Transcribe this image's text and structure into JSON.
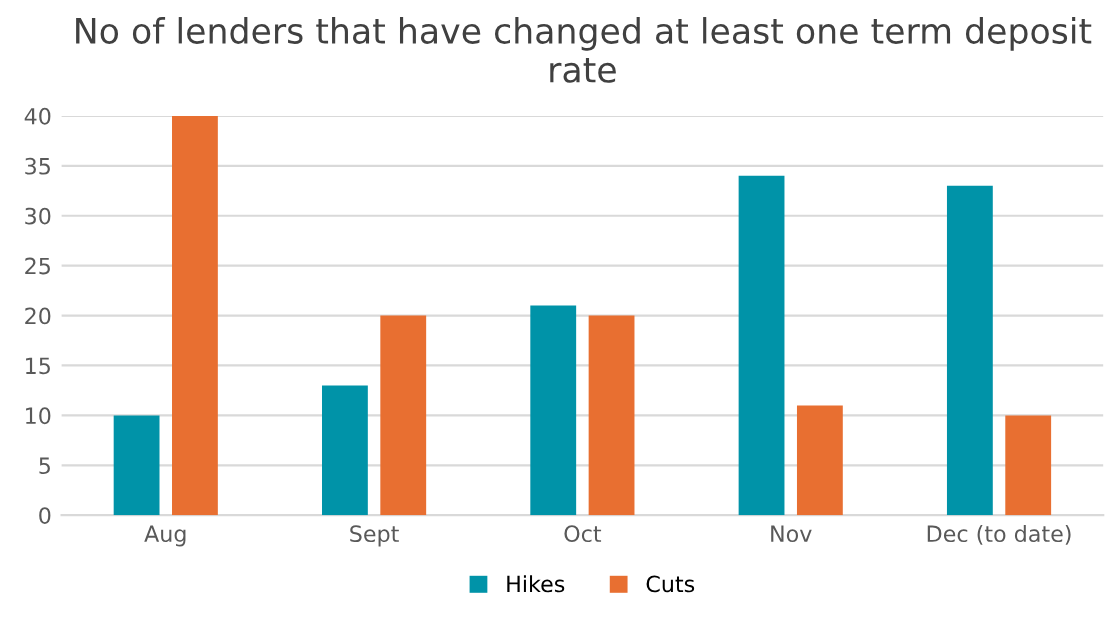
{
  "chart_data": {
    "type": "bar",
    "title": "No of lenders that have changed at least one term deposit rate",
    "categories": [
      "Aug",
      "Sept",
      "Oct",
      "Nov",
      "Dec (to date)"
    ],
    "series": [
      {
        "name": "Hikes",
        "color": "#0093a8",
        "values": [
          10,
          13,
          21,
          34,
          33
        ]
      },
      {
        "name": "Cuts",
        "color": "#e86f31",
        "values": [
          40,
          20,
          20,
          11,
          10
        ]
      }
    ],
    "ylim": [
      0,
      40
    ],
    "yticks": [
      0,
      5,
      10,
      15,
      20,
      25,
      30,
      35,
      40
    ],
    "grid": "y",
    "legend": "bottom"
  }
}
